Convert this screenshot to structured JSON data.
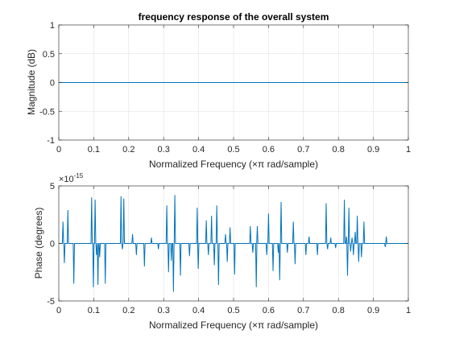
{
  "chart_data": [
    {
      "type": "line",
      "title": "frequency response of the overall system",
      "xlabel": "Normalized Frequency  (×π rad/sample)",
      "ylabel": "Magnitude (dB)",
      "xlim": [
        0,
        1
      ],
      "ylim": [
        -1,
        1
      ],
      "xticks": [
        0,
        0.1,
        0.2,
        0.3,
        0.4,
        0.5,
        0.6,
        0.7,
        0.8,
        0.9,
        1
      ],
      "xtick_labels": [
        "0",
        "0.1",
        "0.2",
        "0.3",
        "0.4",
        "0.5",
        "0.6",
        "0.7",
        "0.8",
        "0.9",
        "1"
      ],
      "yticks": [
        -1,
        -0.5,
        0,
        0.5,
        1
      ],
      "ytick_labels": [
        "-1",
        "-0.5",
        "0",
        "0.5",
        "1"
      ],
      "grid": true,
      "line_color": "#0072bd",
      "series": [
        {
          "x": [
            0,
            1
          ],
          "y": [
            0,
            0
          ]
        }
      ]
    },
    {
      "type": "line",
      "title": "",
      "xlabel": "Normalized Frequency  (×π rad/sample)",
      "ylabel": "Phase (degrees)",
      "xlim": [
        0,
        1
      ],
      "ylim": [
        -5,
        5
      ],
      "y_multiplier": "×10",
      "y_exponent": "-15",
      "xticks": [
        0,
        0.1,
        0.2,
        0.3,
        0.4,
        0.5,
        0.6,
        0.7,
        0.8,
        0.9,
        1
      ],
      "xtick_labels": [
        "0",
        "0.1",
        "0.2",
        "0.3",
        "0.4",
        "0.5",
        "0.6",
        "0.7",
        "0.8",
        "0.9",
        "1"
      ],
      "yticks": [
        -5,
        0,
        5
      ],
      "ytick_labels": [
        "-5",
        "0",
        "5"
      ],
      "grid": true,
      "line_color": "#0072bd",
      "series": [
        {
          "spikes": [
            {
              "x": 0.012,
              "y": 1.9
            },
            {
              "x": 0.016,
              "y": -1.7
            },
            {
              "x": 0.026,
              "y": 2.9
            },
            {
              "x": 0.043,
              "y": -3.5
            },
            {
              "x": 0.094,
              "y": 4.0
            },
            {
              "x": 0.099,
              "y": -3.8
            },
            {
              "x": 0.104,
              "y": 3.8
            },
            {
              "x": 0.108,
              "y": -1.0
            },
            {
              "x": 0.112,
              "y": -3.6
            },
            {
              "x": 0.117,
              "y": -1.2
            },
            {
              "x": 0.133,
              "y": -3.5
            },
            {
              "x": 0.178,
              "y": 4.1
            },
            {
              "x": 0.182,
              "y": -0.5
            },
            {
              "x": 0.186,
              "y": 3.9
            },
            {
              "x": 0.211,
              "y": 0.8
            },
            {
              "x": 0.222,
              "y": -1.0
            },
            {
              "x": 0.245,
              "y": -2.0
            },
            {
              "x": 0.265,
              "y": 0.5
            },
            {
              "x": 0.285,
              "y": -0.5
            },
            {
              "x": 0.309,
              "y": 3.3
            },
            {
              "x": 0.314,
              "y": -2.5
            },
            {
              "x": 0.322,
              "y": -1.5
            },
            {
              "x": 0.328,
              "y": -4.2
            },
            {
              "x": 0.332,
              "y": 4.2
            },
            {
              "x": 0.348,
              "y": -2.8
            },
            {
              "x": 0.374,
              "y": -1.1
            },
            {
              "x": 0.396,
              "y": 3.1
            },
            {
              "x": 0.399,
              "y": -2.2
            },
            {
              "x": 0.422,
              "y": 2.0
            },
            {
              "x": 0.428,
              "y": -1.0
            },
            {
              "x": 0.437,
              "y": 2.4
            },
            {
              "x": 0.445,
              "y": -1.9
            },
            {
              "x": 0.452,
              "y": 3.3
            },
            {
              "x": 0.457,
              "y": -3.6
            },
            {
              "x": 0.477,
              "y": 0.8
            },
            {
              "x": 0.482,
              "y": -1.6
            },
            {
              "x": 0.49,
              "y": 1.4
            },
            {
              "x": 0.503,
              "y": -2.7
            },
            {
              "x": 0.548,
              "y": 1.5
            },
            {
              "x": 0.555,
              "y": -0.8
            },
            {
              "x": 0.565,
              "y": -3.8
            },
            {
              "x": 0.568,
              "y": 1.5
            },
            {
              "x": 0.595,
              "y": -1.0
            },
            {
              "x": 0.6,
              "y": 2.6
            },
            {
              "x": 0.613,
              "y": -2.4
            },
            {
              "x": 0.628,
              "y": -0.8
            },
            {
              "x": 0.632,
              "y": -3.2
            },
            {
              "x": 0.636,
              "y": 3.6
            },
            {
              "x": 0.654,
              "y": -0.8
            },
            {
              "x": 0.671,
              "y": 1.9
            },
            {
              "x": 0.676,
              "y": -1.8
            },
            {
              "x": 0.707,
              "y": -1.0
            },
            {
              "x": 0.716,
              "y": 0.6
            },
            {
              "x": 0.74,
              "y": -1.0
            },
            {
              "x": 0.765,
              "y": 3.5
            },
            {
              "x": 0.769,
              "y": -0.5
            },
            {
              "x": 0.778,
              "y": 0.5
            },
            {
              "x": 0.792,
              "y": -0.4
            },
            {
              "x": 0.817,
              "y": 3.8
            },
            {
              "x": 0.823,
              "y": 0.6
            },
            {
              "x": 0.826,
              "y": -2.8
            },
            {
              "x": 0.83,
              "y": 3.1
            },
            {
              "x": 0.835,
              "y": -0.7
            },
            {
              "x": 0.839,
              "y": 0.5
            },
            {
              "x": 0.843,
              "y": -1.0
            },
            {
              "x": 0.848,
              "y": 1.0
            },
            {
              "x": 0.854,
              "y": 2.4
            },
            {
              "x": 0.858,
              "y": -1.6
            },
            {
              "x": 0.866,
              "y": -1.2
            },
            {
              "x": 0.873,
              "y": 1.9
            },
            {
              "x": 0.934,
              "y": -0.3
            },
            {
              "x": 0.937,
              "y": 0.6
            }
          ]
        }
      ]
    }
  ]
}
